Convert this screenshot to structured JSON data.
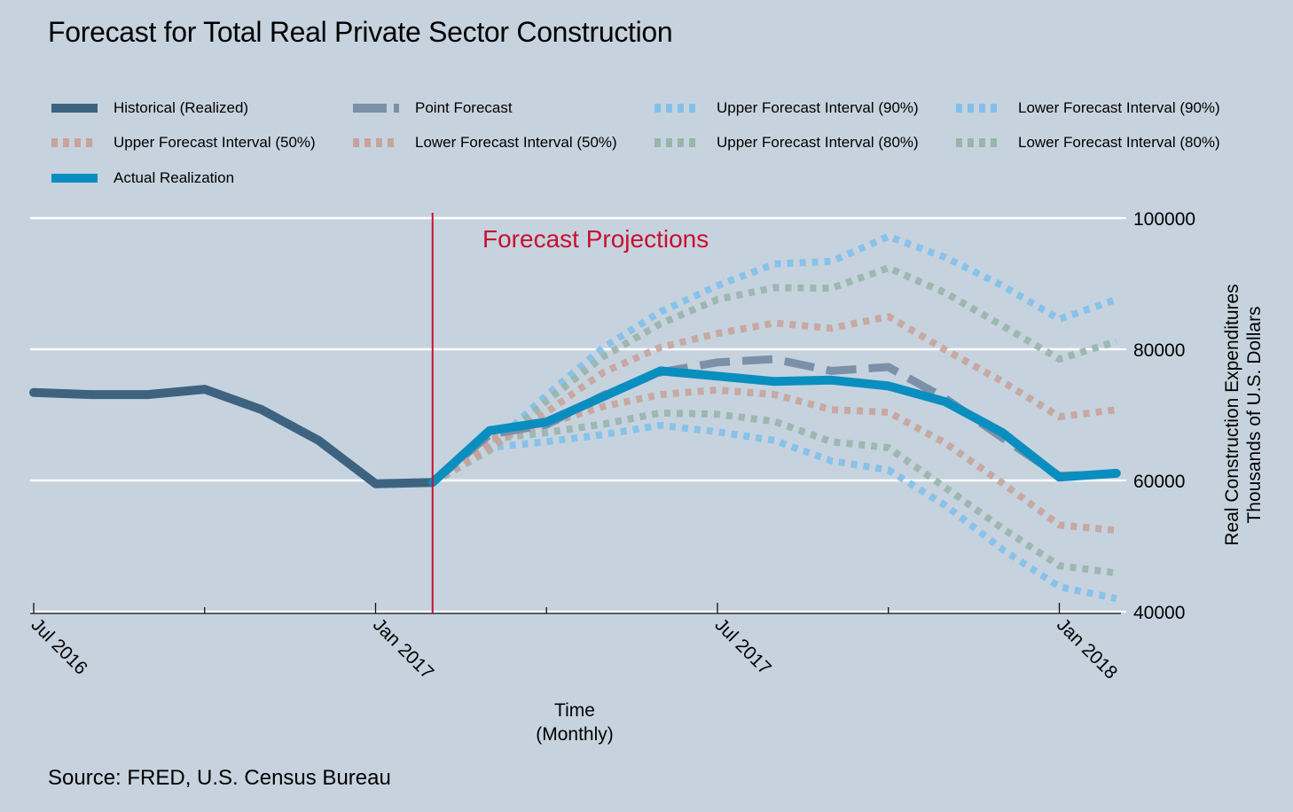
{
  "chart_data": {
    "type": "line",
    "title": "Forecast for Total Real Private Sector Construction",
    "xlabel": [
      "Time",
      "(Monthly)"
    ],
    "ylabel": [
      "Real Construction Expenditures",
      "Thousands of U.S. Dollars"
    ],
    "source": "Source: FRED, U.S. Census Bureau",
    "annotation": {
      "text": "Forecast Projections",
      "at": "Feb 2017",
      "color": "#c8102e"
    },
    "ylim": [
      40000,
      100000
    ],
    "yticks": [
      40000,
      60000,
      80000,
      100000
    ],
    "ytick_labels": [
      "40000",
      "60000",
      "80000",
      "100000"
    ],
    "x": [
      "Jul 2016",
      "Aug 2016",
      "Sep 2016",
      "Oct 2016",
      "Nov 2016",
      "Dec 2016",
      "Jan 2017",
      "Feb 2017",
      "Mar 2017",
      "Apr 2017",
      "May 2017",
      "Jun 2017",
      "Jul 2017",
      "Aug 2017",
      "Sep 2017",
      "Oct 2017",
      "Nov 2017",
      "Dec 2017",
      "Jan 2018",
      "Feb 2018"
    ],
    "xticks_major": [
      "Jul 2016",
      "Jan 2017",
      "Jul 2017",
      "Jan 2018"
    ],
    "xticks_minor": [
      "Oct 2016",
      "Apr 2017",
      "Oct 2017"
    ],
    "grid": "horizontal",
    "legend_position": "top",
    "series": [
      {
        "name": "Historical (Realized)",
        "color": "#3d6380",
        "style": "solid",
        "start": "Jul 2016",
        "values": [
          73400,
          73100,
          73100,
          73900,
          70800,
          66100,
          59500,
          59700
        ]
      },
      {
        "name": "Point Forecast",
        "color": "#7b91a9",
        "style": "dashed",
        "start": "Feb 2017",
        "values": [
          59700,
          67000,
          68500,
          73000,
          76500,
          78000,
          78500,
          76700,
          77300,
          72500,
          66500,
          60700,
          61000
        ]
      },
      {
        "name": "Upper Forecast Interval (90%)",
        "color": "#82c0ea",
        "style": "dotted",
        "start": "Feb 2017",
        "values": [
          59700,
          65000,
          73000,
          80300,
          85700,
          89700,
          93000,
          93400,
          97200,
          94000,
          89700,
          84600,
          87600
        ]
      },
      {
        "name": "Lower Forecast Interval (90%)",
        "color": "#82c0ea",
        "style": "dotted",
        "start": "Feb 2017",
        "values": [
          59700,
          65000,
          65900,
          67000,
          68400,
          67400,
          66100,
          63000,
          61600,
          56200,
          49500,
          43800,
          42000
        ]
      },
      {
        "name": "Upper Forecast Interval (50%)",
        "color": "#c8a39b",
        "style": "dotted",
        "start": "Feb 2017",
        "values": [
          59700,
          65000,
          70400,
          76500,
          80300,
          82400,
          84000,
          83200,
          85000,
          79900,
          75100,
          69700,
          70800
        ]
      },
      {
        "name": "Lower Forecast Interval (50%)",
        "color": "#c8a39b",
        "style": "dotted",
        "start": "Feb 2017",
        "values": [
          59700,
          66300,
          68600,
          71300,
          73100,
          73800,
          73100,
          70800,
          70400,
          65700,
          59600,
          53200,
          52400
        ]
      },
      {
        "name": "Upper Forecast Interval (80%)",
        "color": "#97b5ab",
        "style": "dotted",
        "start": "Feb 2017",
        "values": [
          59700,
          64600,
          72100,
          78900,
          83900,
          87600,
          89400,
          89300,
          92400,
          88600,
          83600,
          78500,
          81200
        ]
      },
      {
        "name": "Lower Forecast Interval (80%)",
        "color": "#97b5ab",
        "style": "dotted",
        "start": "Feb 2017",
        "values": [
          59700,
          66300,
          67300,
          68600,
          70300,
          70100,
          69000,
          65900,
          65000,
          58900,
          52700,
          47000,
          45900
        ]
      },
      {
        "name": "Actual Realization",
        "color": "#0a8ec0",
        "style": "solid",
        "start": "Feb 2017",
        "values": [
          59700,
          67600,
          68900,
          72800,
          76700,
          75900,
          75100,
          75300,
          74400,
          72000,
          67300,
          60500,
          61100
        ]
      }
    ]
  },
  "legend": [
    {
      "label": "Historical (Realized)",
      "color": "#3d6380",
      "style": "solid"
    },
    {
      "label": "Point Forecast",
      "color": "#7b91a9",
      "style": "dashed"
    },
    {
      "label": "Upper Forecast Interval (90%)",
      "color": "#82c0ea",
      "style": "dotted"
    },
    {
      "label": "Lower Forecast Interval (90%)",
      "color": "#82c0ea",
      "style": "dotted"
    },
    {
      "label": "Upper Forecast Interval (50%)",
      "color": "#c8a39b",
      "style": "dotted"
    },
    {
      "label": "Lower Forecast Interval (50%)",
      "color": "#c8a39b",
      "style": "dotted"
    },
    {
      "label": "Upper Forecast Interval (80%)",
      "color": "#97b5ab",
      "style": "dotted"
    },
    {
      "label": "Lower Forecast Interval (80%)",
      "color": "#97b5ab",
      "style": "dotted"
    },
    {
      "label": "Actual Realization",
      "color": "#0a8ec0",
      "style": "solid"
    }
  ]
}
